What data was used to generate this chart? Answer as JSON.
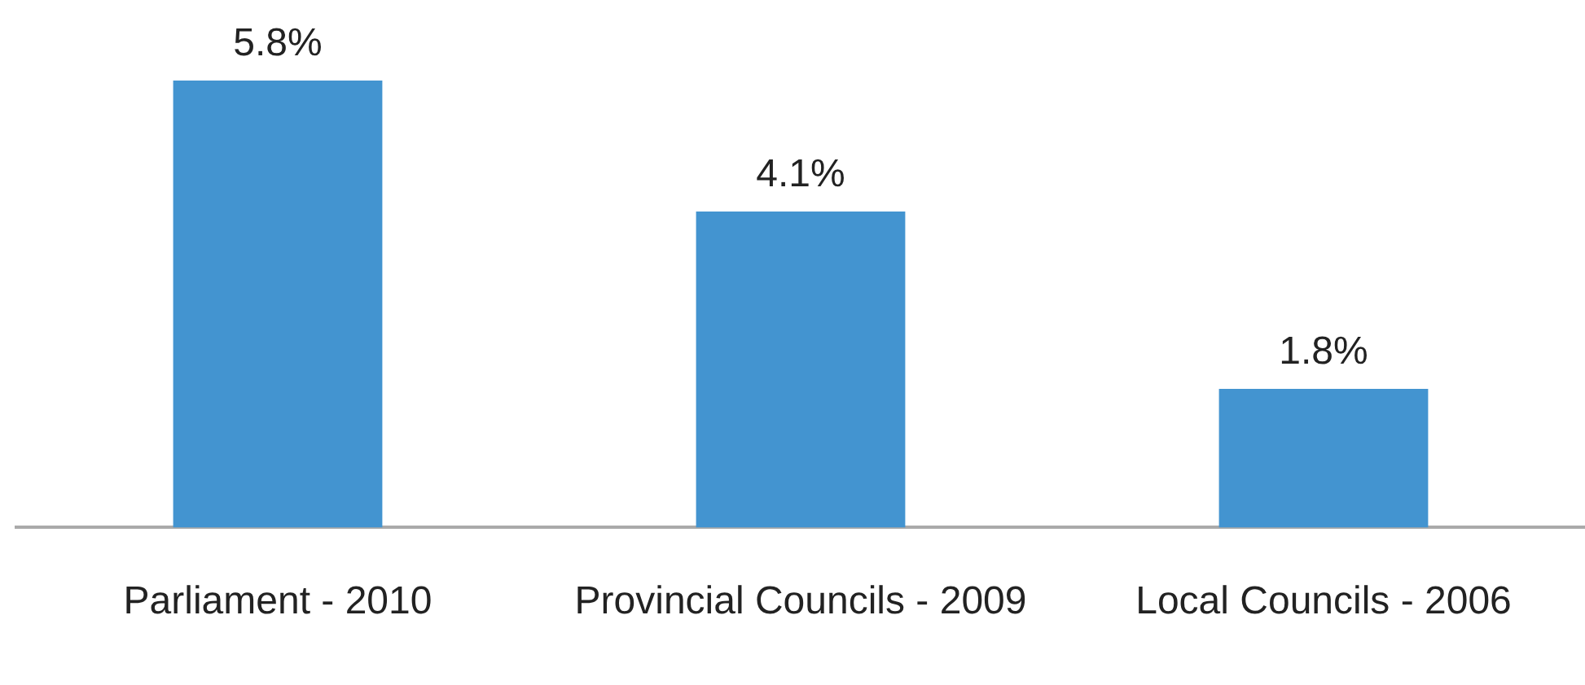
{
  "chart_data": {
    "type": "bar",
    "categories": [
      "Parliament - 2010",
      "Provincial Councils - 2009",
      "Local Councils - 2006"
    ],
    "values": [
      5.8,
      4.1,
      1.8
    ],
    "color": "#4394d0",
    "value_labels": [
      "5.8%",
      "4.1%",
      "1.8%"
    ],
    "grid": false,
    "legend": false,
    "tick_labels": "x"
  }
}
